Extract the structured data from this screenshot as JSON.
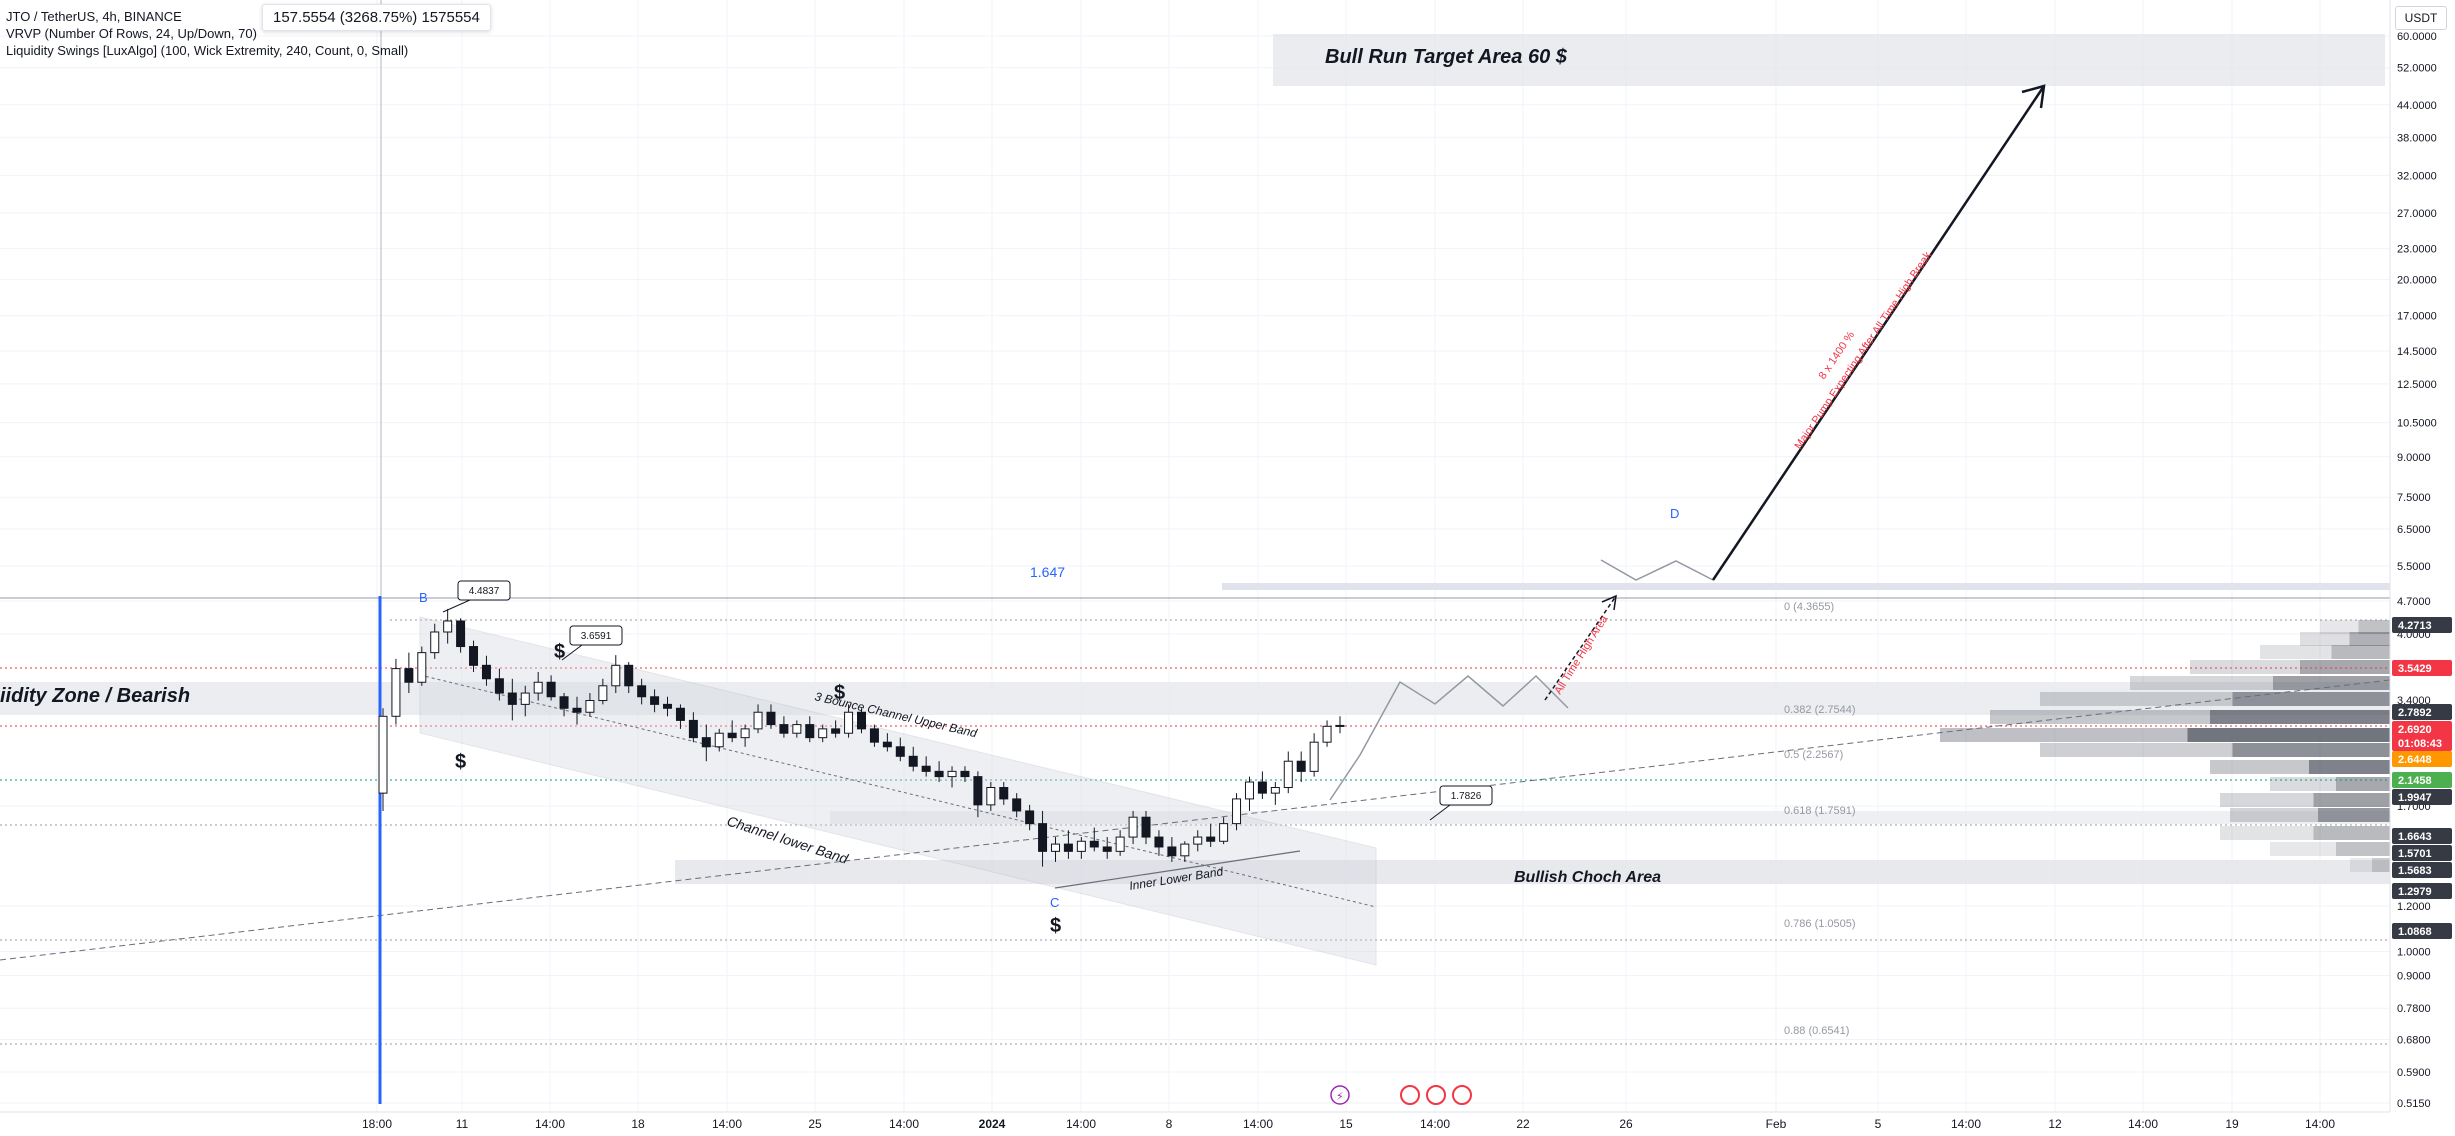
{
  "legend": {
    "symbol": "JTO / TetherUS, 4h, BINANCE",
    "indicator_1": "VRVP (Number Of Rows, 24, Up/Down, 70)",
    "indicator_2": "Liquidity Swings [LuxAlgo] (100, Wick Extremity, 240, Count, 0, Small)"
  },
  "ohlc_box": "157.5554 (3268.75%) 1575554",
  "currency": "USDT",
  "colors": {
    "up": "#089981",
    "down": "#f23645",
    "candle": "#131722",
    "blue": "#2962ff",
    "grid": "#f0f3fa"
  },
  "chart_data": {
    "type": "candlestick",
    "y_scale": "log",
    "y_ticks": [
      "60.0000",
      "52.0000",
      "44.0000",
      "38.0000",
      "32.0000",
      "27.0000",
      "23.0000",
      "20.0000",
      "17.0000",
      "14.5000",
      "12.5000",
      "10.5000",
      "9.0000",
      "7.5000",
      "6.5000",
      "5.5000",
      "4.7000",
      "4.0000",
      "3.4000",
      "1.7000",
      "1.2000",
      "1.0000",
      "0.9000",
      "0.7800",
      "0.6800",
      "0.5900",
      "0.5150"
    ],
    "x_ticks": [
      "18:00",
      "11",
      "14:00",
      "18",
      "14:00",
      "25",
      "14:00",
      "2024",
      "14:00",
      "8",
      "14:00",
      "15",
      "14:00",
      "22",
      "26",
      "Feb",
      "5",
      "14:00",
      "12",
      "14:00",
      "19",
      "14:00"
    ],
    "price_labels": [
      {
        "text": "4.2713",
        "kind": "dark"
      },
      {
        "text": "3.5429",
        "kind": "red"
      },
      {
        "text": "2.7892",
        "kind": "dark"
      },
      {
        "text": "2.6920",
        "kind": "red"
      },
      {
        "text": "01:08:43",
        "kind": "red"
      },
      {
        "text": "2.6448",
        "kind": "orange"
      },
      {
        "text": "2.1458",
        "kind": "green"
      },
      {
        "text": "1.9947",
        "kind": "dark"
      },
      {
        "text": "1.6643",
        "kind": "dark"
      },
      {
        "text": "1.5701",
        "kind": "dark"
      },
      {
        "text": "1.5683",
        "kind": "dark"
      },
      {
        "text": "1.2979",
        "kind": "dark"
      },
      {
        "text": "1.0868",
        "kind": "dark"
      }
    ],
    "fib_levels": [
      {
        "label": "0 (4.3655)",
        "price": 4.3655
      },
      {
        "label": "0.382 (2.7544)",
        "price": 2.7544
      },
      {
        "label": "0.5 (2.2567)",
        "price": 2.2567
      },
      {
        "label": "0.618 (1.7591)",
        "price": 1.7591
      },
      {
        "label": "0.786 (1.0505)",
        "price": 1.0505
      },
      {
        "label": "0.88 (0.6541)",
        "price": 0.6541
      }
    ],
    "annotations": {
      "target_area": "Bull Run Target Area  60 $",
      "liquidity_zone": "iidity Zone / Bearish",
      "bullish_choch": "Bullish Choch Area",
      "upper_band": "3 Bounce Channel Upper Band",
      "lower_band": "Channel lower Band",
      "inner_band": "Inner Lower Band",
      "ath_area": "All Time High Area",
      "pump_line1": "Major Pump Expecting After All Time High Break",
      "pump_line2": "8 x 1400 %",
      "mid_value": "1.647",
      "point_b": "B",
      "point_c": "C",
      "point_d": "D",
      "dollar": "$",
      "callout_1": "4.4837",
      "callout_2": "3.6591",
      "callout_3": "1.7826"
    },
    "candles": [
      [
        2.0,
        2.9,
        1.85,
        2.8
      ],
      [
        2.8,
        3.6,
        2.7,
        3.45
      ],
      [
        3.45,
        3.7,
        3.1,
        3.25
      ],
      [
        3.25,
        3.8,
        3.2,
        3.7
      ],
      [
        3.7,
        4.2,
        3.6,
        4.05
      ],
      [
        4.05,
        4.48,
        3.85,
        4.25
      ],
      [
        4.25,
        4.3,
        3.7,
        3.8
      ],
      [
        3.8,
        3.9,
        3.4,
        3.5
      ],
      [
        3.5,
        3.65,
        3.2,
        3.3
      ],
      [
        3.3,
        3.45,
        3.0,
        3.1
      ],
      [
        3.1,
        3.3,
        2.75,
        2.95
      ],
      [
        2.95,
        3.2,
        2.8,
        3.1
      ],
      [
        3.1,
        3.4,
        3.0,
        3.25
      ],
      [
        3.25,
        3.35,
        3.0,
        3.05
      ],
      [
        3.05,
        3.1,
        2.8,
        2.9
      ],
      [
        2.9,
        3.05,
        2.7,
        2.85
      ],
      [
        2.85,
        3.1,
        2.8,
        3.0
      ],
      [
        3.0,
        3.3,
        2.95,
        3.2
      ],
      [
        3.2,
        3.66,
        3.1,
        3.5
      ],
      [
        3.5,
        3.55,
        3.1,
        3.2
      ],
      [
        3.2,
        3.3,
        2.95,
        3.05
      ],
      [
        3.05,
        3.15,
        2.85,
        2.95
      ],
      [
        2.95,
        3.05,
        2.8,
        2.9
      ],
      [
        2.9,
        2.95,
        2.65,
        2.75
      ],
      [
        2.75,
        2.85,
        2.5,
        2.55
      ],
      [
        2.55,
        2.7,
        2.3,
        2.45
      ],
      [
        2.45,
        2.65,
        2.4,
        2.6
      ],
      [
        2.6,
        2.75,
        2.5,
        2.55
      ],
      [
        2.55,
        2.7,
        2.45,
        2.65
      ],
      [
        2.65,
        2.95,
        2.6,
        2.85
      ],
      [
        2.85,
        2.95,
        2.65,
        2.7
      ],
      [
        2.7,
        2.8,
        2.55,
        2.6
      ],
      [
        2.6,
        2.75,
        2.55,
        2.7
      ],
      [
        2.7,
        2.8,
        2.5,
        2.55
      ],
      [
        2.55,
        2.7,
        2.5,
        2.65
      ],
      [
        2.65,
        2.75,
        2.55,
        2.6
      ],
      [
        2.6,
        2.95,
        2.55,
        2.85
      ],
      [
        2.85,
        2.9,
        2.6,
        2.65
      ],
      [
        2.65,
        2.7,
        2.45,
        2.5
      ],
      [
        2.5,
        2.6,
        2.4,
        2.45
      ],
      [
        2.45,
        2.55,
        2.3,
        2.35
      ],
      [
        2.35,
        2.45,
        2.2,
        2.25
      ],
      [
        2.25,
        2.35,
        2.15,
        2.2
      ],
      [
        2.2,
        2.3,
        2.1,
        2.15
      ],
      [
        2.15,
        2.25,
        2.05,
        2.2
      ],
      [
        2.2,
        2.25,
        2.1,
        2.15
      ],
      [
        2.15,
        2.2,
        1.8,
        1.9
      ],
      [
        1.9,
        2.1,
        1.85,
        2.05
      ],
      [
        2.05,
        2.1,
        1.9,
        1.95
      ],
      [
        1.95,
        2.0,
        1.8,
        1.85
      ],
      [
        1.85,
        1.9,
        1.7,
        1.75
      ],
      [
        1.75,
        1.85,
        1.45,
        1.55
      ],
      [
        1.55,
        1.65,
        1.48,
        1.6
      ],
      [
        1.6,
        1.7,
        1.5,
        1.55
      ],
      [
        1.55,
        1.65,
        1.5,
        1.62
      ],
      [
        1.62,
        1.72,
        1.55,
        1.58
      ],
      [
        1.58,
        1.65,
        1.5,
        1.55
      ],
      [
        1.55,
        1.7,
        1.52,
        1.65
      ],
      [
        1.65,
        1.85,
        1.6,
        1.8
      ],
      [
        1.8,
        1.85,
        1.6,
        1.65
      ],
      [
        1.65,
        1.7,
        1.52,
        1.58
      ],
      [
        1.58,
        1.65,
        1.48,
        1.52
      ],
      [
        1.52,
        1.62,
        1.48,
        1.6
      ],
      [
        1.6,
        1.7,
        1.55,
        1.65
      ],
      [
        1.65,
        1.75,
        1.58,
        1.62
      ],
      [
        1.62,
        1.8,
        1.6,
        1.75
      ],
      [
        1.75,
        2.0,
        1.7,
        1.95
      ],
      [
        1.95,
        2.15,
        1.85,
        2.1
      ],
      [
        2.1,
        2.2,
        1.95,
        2.0
      ],
      [
        2.0,
        2.1,
        1.9,
        2.05
      ],
      [
        2.05,
        2.4,
        2.0,
        2.3
      ],
      [
        2.3,
        2.4,
        2.1,
        2.2
      ],
      [
        2.2,
        2.6,
        2.15,
        2.5
      ],
      [
        2.5,
        2.75,
        2.45,
        2.68
      ],
      [
        2.68,
        2.8,
        2.6,
        2.69
      ]
    ]
  }
}
